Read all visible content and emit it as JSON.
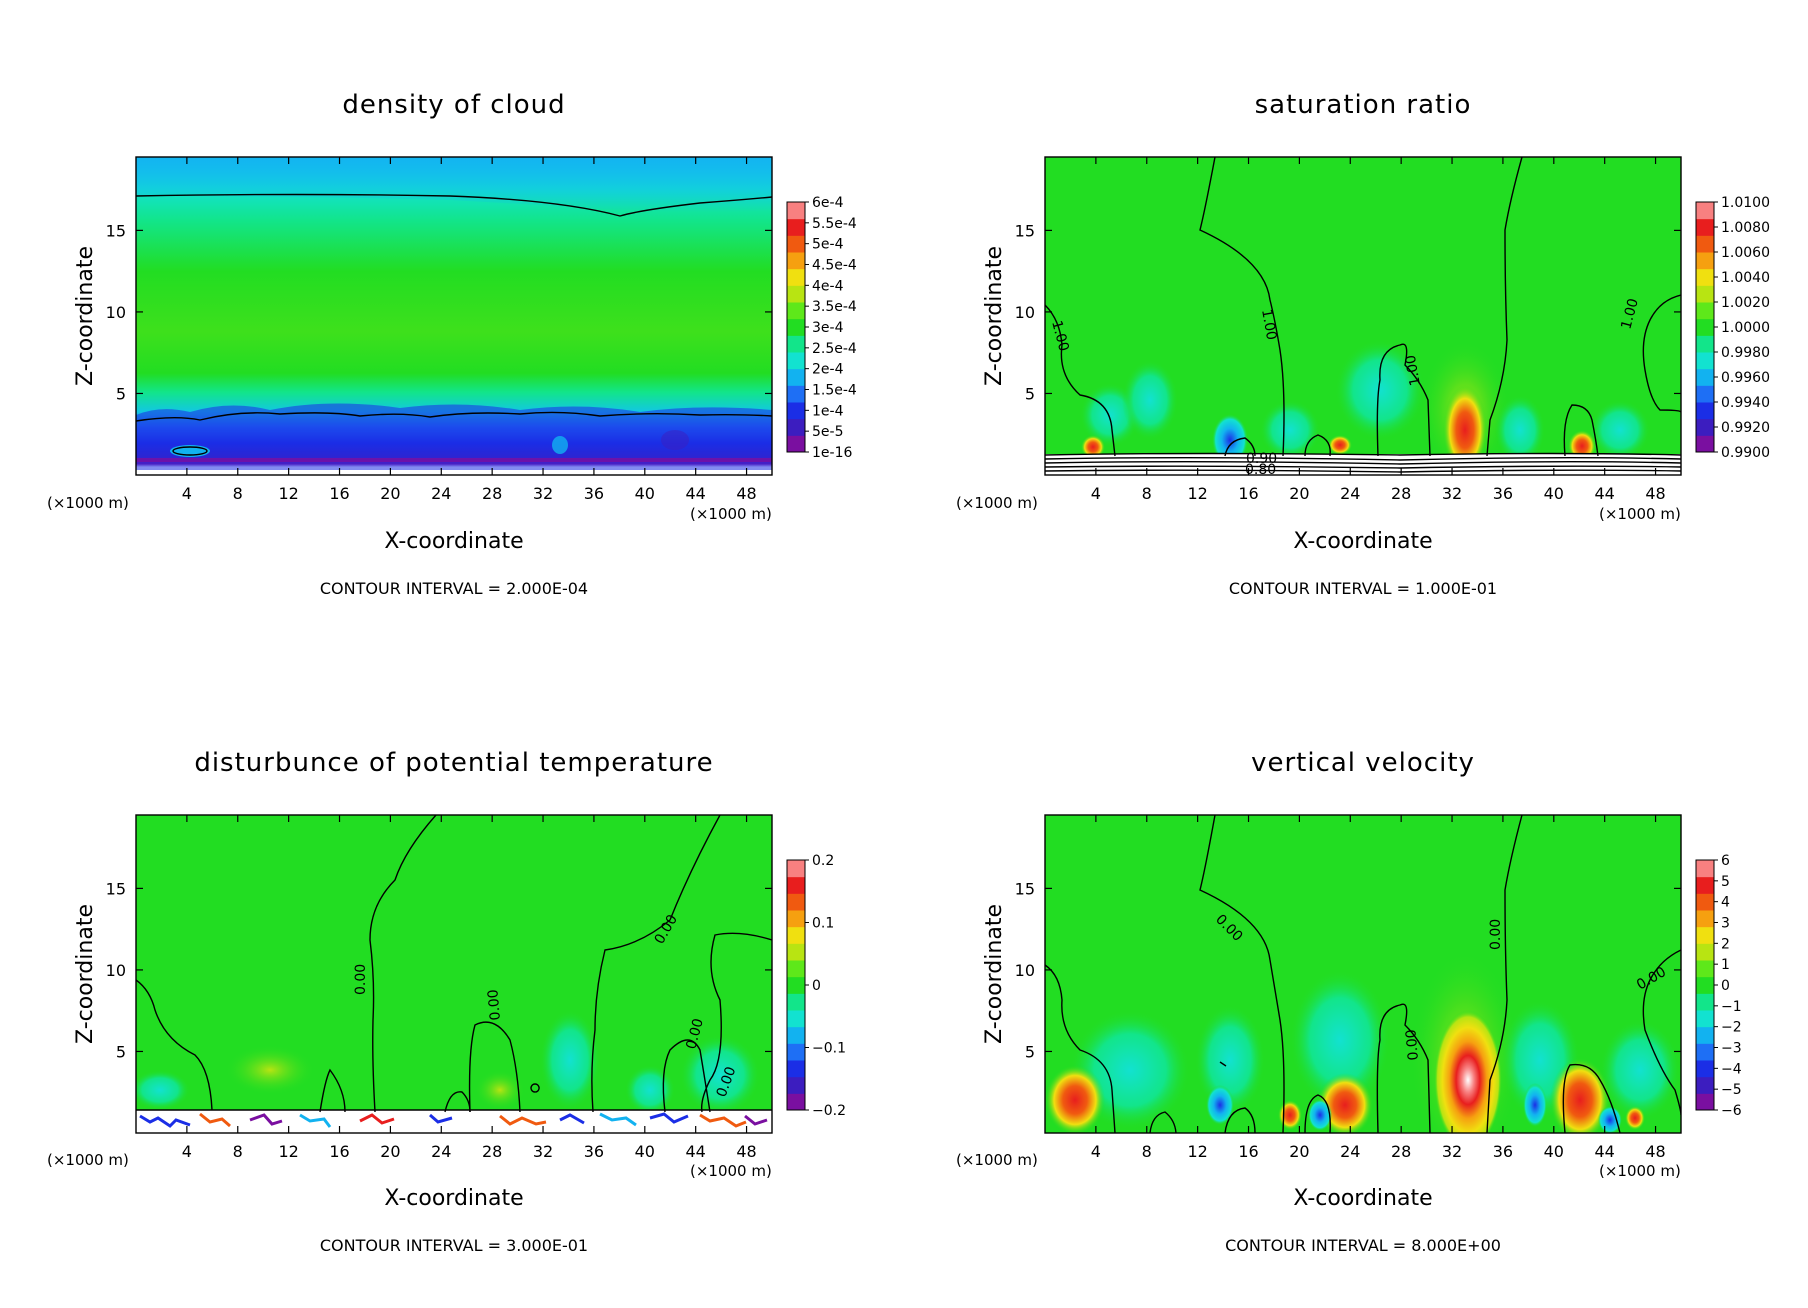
{
  "colors": {
    "background": "#ffffff",
    "field_base": "#22dd22",
    "palette": [
      "#7a0fa0",
      "#3c1dbf",
      "#1b2ee6",
      "#1e6ff5",
      "#12b2f0",
      "#12e2d0",
      "#12e58a",
      "#22dd22",
      "#5ee81a",
      "#b8e412",
      "#f0e010",
      "#f6a010",
      "#f05a10",
      "#e81e1e",
      "#f88080"
    ]
  },
  "x_unit_left": "(×1000 m)",
  "x_unit_right": "(×1000 m)",
  "chart_data": [
    {
      "type": "heatmap",
      "title": "density of cloud",
      "xlabel": "X-coordinate",
      "ylabel": "Z-coordinate",
      "x_ticks": [
        4,
        8,
        12,
        16,
        20,
        24,
        28,
        32,
        36,
        40,
        44,
        48
      ],
      "y_ticks": [
        5,
        10,
        15
      ],
      "xlim": [
        0,
        50
      ],
      "ylim": [
        0,
        19.5
      ],
      "colorbar_labels": [
        "6e-4",
        "5.5e-4",
        "5e-4",
        "4.5e-4",
        "4e-4",
        "3.5e-4",
        "3e-4",
        "2.5e-4",
        "2e-4",
        "1.5e-4",
        "1e-4",
        "5e-5",
        "1e-16"
      ],
      "contour_interval": "CONTOUR INTERVAL = 2.000E-04",
      "contour_labels": []
    },
    {
      "type": "heatmap",
      "title": "saturation ratio",
      "xlabel": "X-coordinate",
      "ylabel": "Z-coordinate",
      "x_ticks": [
        4,
        8,
        12,
        16,
        20,
        24,
        28,
        32,
        36,
        40,
        44,
        48
      ],
      "y_ticks": [
        5,
        10,
        15
      ],
      "xlim": [
        0,
        50
      ],
      "ylim": [
        0,
        19.5
      ],
      "colorbar_labels": [
        "1.0100",
        "1.0080",
        "1.0060",
        "1.0040",
        "1.0020",
        "1.0000",
        "0.9980",
        "0.9960",
        "0.9940",
        "0.9920",
        "0.9900"
      ],
      "contour_interval": "CONTOUR INTERVAL = 1.000E-01",
      "contour_labels": [
        "1.00",
        "1.00",
        "1.00",
        "1.00",
        "0.90",
        "0.80"
      ]
    },
    {
      "type": "heatmap",
      "title": "disturbunce of potential temperature",
      "xlabel": "X-coordinate",
      "ylabel": "Z-coordinate",
      "x_ticks": [
        4,
        8,
        12,
        16,
        20,
        24,
        28,
        32,
        36,
        40,
        44,
        48
      ],
      "y_ticks": [
        5,
        10,
        15
      ],
      "xlim": [
        0,
        50
      ],
      "ylim": [
        0,
        19.5
      ],
      "colorbar_labels": [
        "0.2",
        "0.1",
        "0",
        "−0.1",
        "−0.2"
      ],
      "contour_interval": "CONTOUR INTERVAL = 3.000E-01",
      "contour_labels": [
        "0.00",
        "0.00",
        "0.00",
        "0.00",
        "0.00"
      ]
    },
    {
      "type": "heatmap",
      "title": "vertical velocity",
      "xlabel": "X-coordinate",
      "ylabel": "Z-coordinate",
      "x_ticks": [
        4,
        8,
        12,
        16,
        20,
        24,
        28,
        32,
        36,
        40,
        44,
        48
      ],
      "y_ticks": [
        5,
        10,
        15
      ],
      "xlim": [
        0,
        50
      ],
      "ylim": [
        0,
        19.5
      ],
      "colorbar_labels": [
        "6",
        "5",
        "4",
        "3",
        "2",
        "1",
        "0",
        "−1",
        "−2",
        "−3",
        "−4",
        "−5",
        "−6"
      ],
      "contour_interval": "CONTOUR INTERVAL = 8.000E+00",
      "contour_labels": [
        "0.00",
        "0.00",
        "0.00",
        "0.00"
      ]
    }
  ]
}
